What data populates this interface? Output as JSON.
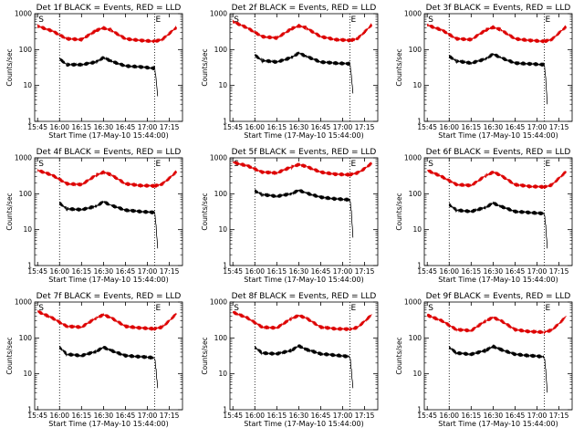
{
  "chart_data": [
    {
      "type": "line",
      "title": "Det 1f BLACK = Events, RED = LLD",
      "xlabel": "Start Time (17-May-10 15:44:00)",
      "ylabel": "Counts/sec",
      "xticks": [
        "15:45",
        "16:00",
        "16:15",
        "16:30",
        "16:45",
        "17:00",
        "17:15"
      ],
      "yticks": [
        "1",
        "10",
        "100",
        "1000"
      ],
      "yscale": "log",
      "ylim": [
        1,
        1000
      ],
      "event_markers": [
        "S",
        "E"
      ],
      "event_marker_times": [
        "15:45",
        "17:05"
      ],
      "dotted_lines": [
        "16:00",
        "17:05"
      ],
      "colors": {
        "lld": "#dd0000",
        "events": "#000000"
      },
      "series": [
        {
          "name": "RED = LLD",
          "color": "#dd0000",
          "x": [
            "15:45",
            "15:55",
            "16:05",
            "16:15",
            "16:25",
            "16:30",
            "16:35",
            "16:45",
            "16:55",
            "17:05",
            "17:10",
            "17:15",
            "17:20"
          ],
          "values": [
            450,
            330,
            200,
            190,
            340,
            400,
            350,
            200,
            180,
            170,
            190,
            280,
            420
          ]
        },
        {
          "name": "BLACK = Events",
          "color": "#000000",
          "x": [
            "16:00",
            "16:05",
            "16:15",
            "16:25",
            "16:30",
            "16:35",
            "16:45",
            "16:55",
            "17:05",
            "17:06",
            "17:07"
          ],
          "values": [
            55,
            38,
            38,
            45,
            60,
            48,
            35,
            33,
            30,
            15,
            5
          ]
        }
      ]
    },
    {
      "type": "line",
      "title": "Det 2f BLACK = Events, RED = LLD",
      "xlabel": "Start Time (17-May-10 15:44:00)",
      "ylabel": "Counts/sec",
      "xticks": [
        "15:45",
        "16:00",
        "16:15",
        "16:30",
        "16:45",
        "17:00",
        "17:15"
      ],
      "yticks": [
        "1",
        "10",
        "100",
        "1000"
      ],
      "yscale": "log",
      "ylim": [
        1,
        1000
      ],
      "event_markers": [
        "S",
        "E"
      ],
      "event_marker_times": [
        "15:45",
        "17:05"
      ],
      "dotted_lines": [
        "16:00",
        "17:05"
      ],
      "colors": {
        "lld": "#dd0000",
        "events": "#000000"
      },
      "series": [
        {
          "name": "RED = LLD",
          "color": "#dd0000",
          "x": [
            "15:45",
            "15:55",
            "16:05",
            "16:15",
            "16:25",
            "16:30",
            "16:35",
            "16:45",
            "16:55",
            "17:05",
            "17:10",
            "17:15",
            "17:20"
          ],
          "values": [
            600,
            400,
            230,
            210,
            380,
            460,
            400,
            230,
            190,
            180,
            200,
            310,
            500
          ]
        },
        {
          "name": "BLACK = Events",
          "color": "#000000",
          "x": [
            "16:00",
            "16:05",
            "16:15",
            "16:25",
            "16:30",
            "16:35",
            "16:45",
            "16:55",
            "17:05",
            "17:06",
            "17:07"
          ],
          "values": [
            70,
            50,
            45,
            60,
            80,
            65,
            45,
            42,
            40,
            18,
            6
          ]
        }
      ]
    },
    {
      "type": "line",
      "title": "Det 3f BLACK = Events, RED = LLD",
      "xlabel": "Start Time (17-May-10 15:44:00)",
      "ylabel": "Counts/sec",
      "xticks": [
        "15:45",
        "16:00",
        "16:15",
        "16:30",
        "16:45",
        "17:00",
        "17:15"
      ],
      "yticks": [
        "1",
        "10",
        "100",
        "1000"
      ],
      "yscale": "log",
      "ylim": [
        1,
        1000
      ],
      "event_markers": [
        "S",
        "E"
      ],
      "event_marker_times": [
        "15:45",
        "17:05"
      ],
      "dotted_lines": [
        "16:00",
        "17:05"
      ],
      "colors": {
        "lld": "#dd0000",
        "events": "#000000"
      },
      "series": [
        {
          "name": "RED = LLD",
          "color": "#dd0000",
          "x": [
            "15:45",
            "15:55",
            "16:05",
            "16:15",
            "16:25",
            "16:30",
            "16:35",
            "16:45",
            "16:55",
            "17:05",
            "17:10",
            "17:15",
            "17:20"
          ],
          "values": [
            480,
            350,
            200,
            190,
            350,
            420,
            360,
            200,
            180,
            170,
            190,
            290,
            440
          ]
        },
        {
          "name": "BLACK = Events",
          "color": "#000000",
          "x": [
            "16:00",
            "16:05",
            "16:15",
            "16:25",
            "16:30",
            "16:35",
            "16:45",
            "16:55",
            "17:05",
            "17:06",
            "17:07"
          ],
          "values": [
            65,
            48,
            42,
            55,
            75,
            60,
            42,
            40,
            38,
            15,
            3
          ]
        }
      ]
    },
    {
      "type": "line",
      "title": "Det 4f BLACK = Events, RED = LLD",
      "xlabel": "Start Time (17-May-10 15:44:00)",
      "ylabel": "Counts/sec",
      "xticks": [
        "15:45",
        "16:00",
        "16:15",
        "16:30",
        "16:45",
        "17:00",
        "17:15"
      ],
      "yticks": [
        "1",
        "10",
        "100",
        "1000"
      ],
      "yscale": "log",
      "ylim": [
        1,
        1000
      ],
      "event_markers": [
        "S",
        "E"
      ],
      "event_marker_times": [
        "15:45",
        "17:05"
      ],
      "dotted_lines": [
        "16:00",
        "17:05"
      ],
      "colors": {
        "lld": "#dd0000",
        "events": "#000000"
      },
      "series": [
        {
          "name": "RED = LLD",
          "color": "#dd0000",
          "x": [
            "15:45",
            "15:55",
            "16:05",
            "16:15",
            "16:25",
            "16:30",
            "16:35",
            "16:45",
            "16:55",
            "17:05",
            "17:10",
            "17:15",
            "17:20"
          ],
          "values": [
            450,
            330,
            190,
            180,
            330,
            400,
            340,
            190,
            170,
            165,
            185,
            270,
            420
          ]
        },
        {
          "name": "BLACK = Events",
          "color": "#000000",
          "x": [
            "16:00",
            "16:05",
            "16:15",
            "16:25",
            "16:30",
            "16:35",
            "16:45",
            "16:55",
            "17:05",
            "17:06",
            "17:07"
          ],
          "values": [
            55,
            38,
            36,
            45,
            60,
            48,
            35,
            32,
            30,
            12,
            3
          ]
        }
      ]
    },
    {
      "type": "line",
      "title": "Det 5f BLACK = Events, RED = LLD",
      "xlabel": "Start Time (17-May-10 15:44:00)",
      "ylabel": "Counts/sec",
      "xticks": [
        "15:45",
        "16:00",
        "16:15",
        "16:30",
        "16:45",
        "17:00",
        "17:15"
      ],
      "yticks": [
        "1",
        "10",
        "100",
        "1000"
      ],
      "yscale": "log",
      "ylim": [
        1,
        1000
      ],
      "event_markers": [
        "S",
        "E"
      ],
      "event_marker_times": [
        "15:45",
        "17:05"
      ],
      "dotted_lines": [
        "16:00",
        "17:05"
      ],
      "colors": {
        "lld": "#dd0000",
        "events": "#000000"
      },
      "series": [
        {
          "name": "RED = LLD",
          "color": "#dd0000",
          "x": [
            "15:45",
            "15:55",
            "16:05",
            "16:15",
            "16:25",
            "16:30",
            "16:35",
            "16:45",
            "16:55",
            "17:05",
            "17:10",
            "17:15",
            "17:20"
          ],
          "values": [
            750,
            600,
            400,
            380,
            560,
            650,
            580,
            400,
            350,
            340,
            380,
            500,
            720
          ]
        },
        {
          "name": "BLACK = Events",
          "color": "#000000",
          "x": [
            "16:00",
            "16:05",
            "16:15",
            "16:25",
            "16:30",
            "16:35",
            "16:45",
            "16:55",
            "17:05",
            "17:06",
            "17:07"
          ],
          "values": [
            120,
            95,
            85,
            100,
            125,
            105,
            80,
            72,
            68,
            30,
            6
          ]
        }
      ]
    },
    {
      "type": "line",
      "title": "Det 6f BLACK = Events, RED = LLD",
      "xlabel": "Start Time (17-May-10 15:44:00)",
      "ylabel": "Counts/sec",
      "xticks": [
        "15:45",
        "16:00",
        "16:15",
        "16:30",
        "16:45",
        "17:00",
        "17:15"
      ],
      "yticks": [
        "1",
        "10",
        "100",
        "1000"
      ],
      "yscale": "log",
      "ylim": [
        1,
        1000
      ],
      "event_markers": [
        "S",
        "E"
      ],
      "event_marker_times": [
        "15:45",
        "17:05"
      ],
      "dotted_lines": [
        "16:00",
        "17:05"
      ],
      "colors": {
        "lld": "#dd0000",
        "events": "#000000"
      },
      "series": [
        {
          "name": "RED = LLD",
          "color": "#dd0000",
          "x": [
            "15:45",
            "15:55",
            "16:05",
            "16:15",
            "16:25",
            "16:30",
            "16:35",
            "16:45",
            "16:55",
            "17:05",
            "17:10",
            "17:15",
            "17:20"
          ],
          "values": [
            450,
            300,
            180,
            170,
            320,
            400,
            330,
            180,
            160,
            155,
            175,
            270,
            420
          ]
        },
        {
          "name": "BLACK = Events",
          "color": "#000000",
          "x": [
            "16:00",
            "16:05",
            "16:15",
            "16:25",
            "16:30",
            "16:35",
            "16:45",
            "16:55",
            "17:05",
            "17:06",
            "17:07"
          ],
          "values": [
            50,
            35,
            32,
            42,
            55,
            45,
            32,
            30,
            28,
            12,
            3
          ]
        }
      ]
    },
    {
      "type": "line",
      "title": "Det 7f BLACK = Events, RED = LLD",
      "xlabel": "Start Time (17-May-10 15:44:00)",
      "ylabel": "Counts/sec",
      "xticks": [
        "15:45",
        "16:00",
        "16:15",
        "16:30",
        "16:45",
        "17:00",
        "17:15"
      ],
      "yticks": [
        "1",
        "10",
        "100",
        "1000"
      ],
      "yscale": "log",
      "ylim": [
        1,
        1000
      ],
      "event_markers": [
        "S",
        "E"
      ],
      "event_marker_times": [
        "15:45",
        "17:05"
      ],
      "dotted_lines": [
        "16:00",
        "17:05"
      ],
      "colors": {
        "lld": "#dd0000",
        "events": "#000000"
      },
      "series": [
        {
          "name": "RED = LLD",
          "color": "#dd0000",
          "x": [
            "15:45",
            "15:55",
            "16:05",
            "16:15",
            "16:25",
            "16:30",
            "16:35",
            "16:45",
            "16:55",
            "17:05",
            "17:10",
            "17:15",
            "17:20"
          ],
          "values": [
            550,
            360,
            210,
            200,
            360,
            440,
            370,
            210,
            190,
            180,
            200,
            300,
            480
          ]
        },
        {
          "name": "BLACK = Events",
          "color": "#000000",
          "x": [
            "16:00",
            "16:05",
            "16:15",
            "16:25",
            "16:30",
            "16:35",
            "16:45",
            "16:55",
            "17:05",
            "17:06",
            "17:07"
          ],
          "values": [
            55,
            35,
            32,
            42,
            55,
            45,
            32,
            30,
            28,
            12,
            4
          ]
        }
      ]
    },
    {
      "type": "line",
      "title": "Det 8f BLACK = Events, RED = LLD",
      "xlabel": "Start Time (17-May-10 15:44:00)",
      "ylabel": "Counts/sec",
      "xticks": [
        "15:45",
        "16:00",
        "16:15",
        "16:30",
        "16:45",
        "17:00",
        "17:15"
      ],
      "yticks": [
        "1",
        "10",
        "100",
        "1000"
      ],
      "yscale": "log",
      "ylim": [
        1,
        1000
      ],
      "event_markers": [
        "S",
        "E"
      ],
      "event_marker_times": [
        "15:45",
        "17:05"
      ],
      "dotted_lines": [
        "16:00",
        "17:05"
      ],
      "colors": {
        "lld": "#dd0000",
        "events": "#000000"
      },
      "series": [
        {
          "name": "RED = LLD",
          "color": "#dd0000",
          "x": [
            "15:45",
            "15:55",
            "16:05",
            "16:15",
            "16:25",
            "16:30",
            "16:35",
            "16:45",
            "16:55",
            "17:05",
            "17:10",
            "17:15",
            "17:20"
          ],
          "values": [
            520,
            360,
            200,
            190,
            350,
            420,
            360,
            200,
            180,
            175,
            195,
            290,
            450
          ]
        },
        {
          "name": "BLACK = Events",
          "color": "#000000",
          "x": [
            "16:00",
            "16:05",
            "16:15",
            "16:25",
            "16:30",
            "16:35",
            "16:45",
            "16:55",
            "17:05",
            "17:06",
            "17:07"
          ],
          "values": [
            55,
            38,
            36,
            45,
            60,
            48,
            36,
            33,
            30,
            12,
            4
          ]
        }
      ]
    },
    {
      "type": "line",
      "title": "Det 9f BLACK = Events, RED = LLD",
      "xlabel": "Start Time (17-May-10 15:44:00)",
      "ylabel": "Counts/sec",
      "xticks": [
        "15:45",
        "16:00",
        "16:15",
        "16:30",
        "16:45",
        "17:00",
        "17:15"
      ],
      "yticks": [
        "1",
        "10",
        "100",
        "1000"
      ],
      "yscale": "log",
      "ylim": [
        1,
        1000
      ],
      "event_markers": [
        "S",
        "E"
      ],
      "event_marker_times": [
        "15:45",
        "17:05"
      ],
      "dotted_lines": [
        "16:00",
        "17:05"
      ],
      "colors": {
        "lld": "#dd0000",
        "events": "#000000"
      },
      "series": [
        {
          "name": "RED = LLD",
          "color": "#dd0000",
          "x": [
            "15:45",
            "15:55",
            "16:05",
            "16:15",
            "16:25",
            "16:30",
            "16:35",
            "16:45",
            "16:55",
            "17:05",
            "17:10",
            "17:15",
            "17:20"
          ],
          "values": [
            430,
            300,
            170,
            160,
            300,
            370,
            310,
            170,
            150,
            145,
            165,
            250,
            400
          ]
        },
        {
          "name": "BLACK = Events",
          "color": "#000000",
          "x": [
            "16:00",
            "16:05",
            "16:15",
            "16:25",
            "16:30",
            "16:35",
            "16:45",
            "16:55",
            "17:05",
            "17:06",
            "17:07"
          ],
          "values": [
            55,
            38,
            35,
            45,
            58,
            48,
            35,
            32,
            30,
            12,
            3
          ]
        }
      ]
    }
  ]
}
